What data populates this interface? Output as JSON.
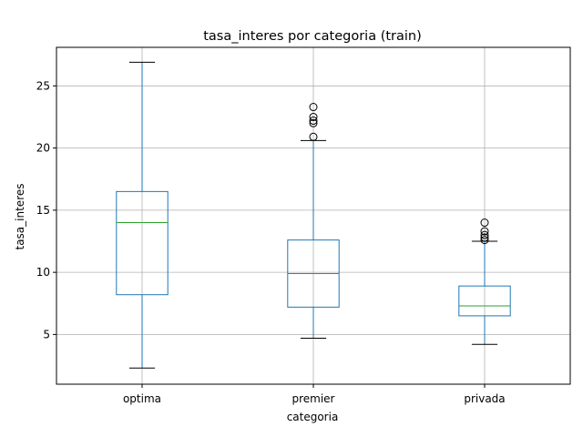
{
  "chart_data": {
    "type": "box",
    "title": "tasa_interes por categoria (train)",
    "xlabel": "categoria",
    "ylabel": "tasa_interes",
    "categories": [
      "optima",
      "premier",
      "privada"
    ],
    "ylim": [
      1.0,
      28.1
    ],
    "yticks": [
      5,
      10,
      15,
      20,
      25
    ],
    "grid": true,
    "colors": {
      "box": "#1f77b4",
      "median": "#2ca02c",
      "whisker_cap": "#000000",
      "flier": "#000000",
      "grid": "#b0b0b0"
    },
    "boxes": [
      {
        "category": "optima",
        "whisker_low": 2.3,
        "q1": 8.2,
        "median": 14.0,
        "q3": 16.5,
        "whisker_high": 26.9,
        "outliers": []
      },
      {
        "category": "premier",
        "whisker_low": 4.7,
        "q1": 7.2,
        "median": 9.9,
        "q3": 12.6,
        "whisker_high": 20.6,
        "outliers": [
          20.9,
          22.0,
          22.2,
          22.5,
          23.3
        ]
      },
      {
        "category": "privada",
        "whisker_low": 4.2,
        "q1": 6.5,
        "median": 7.3,
        "q3": 8.9,
        "whisker_high": 12.5,
        "outliers": [
          12.6,
          12.8,
          13.0,
          13.3,
          14.0
        ]
      }
    ]
  }
}
